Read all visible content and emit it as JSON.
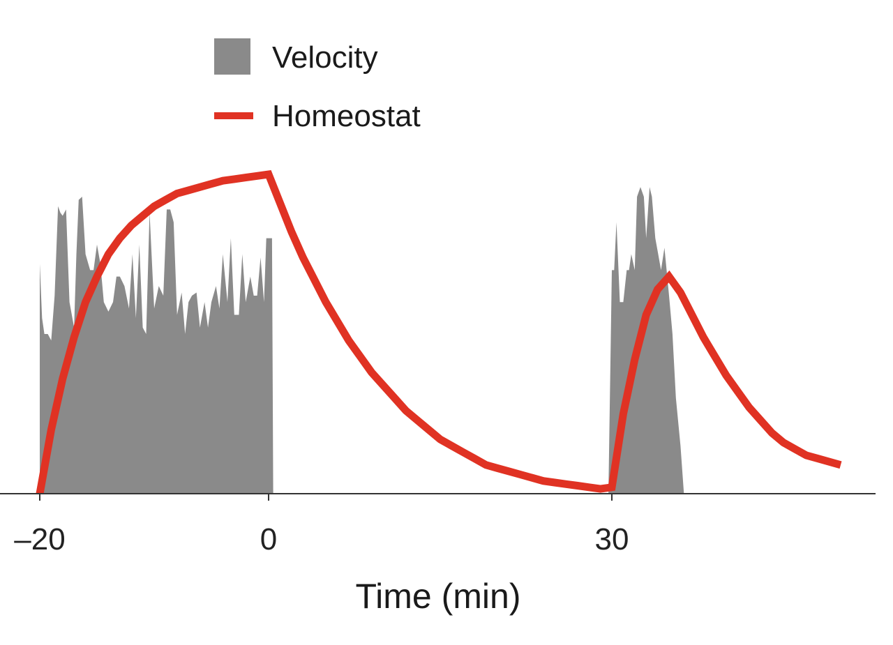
{
  "chart_data": {
    "type": "area",
    "xlabel": "Time (min)",
    "ylabel": "",
    "xlim": [
      -20,
      53
    ],
    "ylim": [
      0,
      1.0
    ],
    "x_ticks": [
      -20,
      0,
      30
    ],
    "x_tick_labels": [
      "–20",
      "0",
      "30"
    ],
    "grid": false,
    "legend": {
      "position": "top-left",
      "entries": [
        {
          "label": "Velocity",
          "symbol": "patch",
          "color": "#8a8a8a"
        },
        {
          "label": "Homeostat",
          "symbol": "line",
          "color": "#e03223"
        }
      ]
    },
    "series": [
      {
        "name": "Velocity",
        "kind": "area",
        "color": "#8a8a8a",
        "segments": [
          {
            "x": [
              -20,
              -19.8,
              -19.6,
              -19.3,
              -19.0,
              -18.7,
              -18.4,
              -18.2,
              -18.0,
              -17.7,
              -17.4,
              -17.0,
              -16.8,
              -16.6,
              -16.3,
              -16.0,
              -15.6,
              -15.3,
              -15.0,
              -14.7,
              -14.4,
              -14.0,
              -13.6,
              -13.3,
              -13.0,
              -12.6,
              -12.2,
              -11.9,
              -11.6,
              -11.3,
              -11.0,
              -10.7,
              -10.4,
              -10.0,
              -9.6,
              -9.2,
              -8.9,
              -8.6,
              -8.3,
              -8.0,
              -7.6,
              -7.3,
              -7.0,
              -6.7,
              -6.3,
              -6.0,
              -5.6,
              -5.3,
              -5.0,
              -4.6,
              -4.3,
              -4.0,
              -3.6,
              -3.3,
              -3.0,
              -2.6,
              -2.3,
              -2.0,
              -1.6,
              -1.3,
              -1.0,
              -0.7,
              -0.4,
              -0.2,
              0,
              0.3,
              0.4
            ],
            "y": [
              0.72,
              0.55,
              0.5,
              0.5,
              0.48,
              0.62,
              0.9,
              0.88,
              0.87,
              0.89,
              0.6,
              0.52,
              0.75,
              0.92,
              0.93,
              0.75,
              0.7,
              0.7,
              0.78,
              0.72,
              0.6,
              0.57,
              0.6,
              0.68,
              0.68,
              0.65,
              0.58,
              0.75,
              0.55,
              0.78,
              0.52,
              0.5,
              0.88,
              0.58,
              0.65,
              0.62,
              0.89,
              0.89,
              0.85,
              0.56,
              0.63,
              0.5,
              0.6,
              0.62,
              0.63,
              0.52,
              0.6,
              0.52,
              0.6,
              0.65,
              0.58,
              0.75,
              0.6,
              0.8,
              0.56,
              0.56,
              0.75,
              0.6,
              0.68,
              0.62,
              0.62,
              0.74,
              0.6,
              0.8,
              0.8,
              0.8,
              0
            ]
          },
          {
            "x": [
              29.7,
              30.0,
              30.2,
              30.4,
              30.7,
              31.0,
              31.3,
              31.5,
              31.7,
              32.0,
              32.2,
              32.5,
              32.8,
              33.0,
              33.3,
              33.5,
              33.8,
              34.0,
              34.3,
              34.6,
              35.0,
              35.3,
              35.6,
              36.0,
              36.3
            ],
            "y": [
              0,
              0.7,
              0.7,
              0.85,
              0.6,
              0.6,
              0.7,
              0.7,
              0.75,
              0.7,
              0.93,
              0.96,
              0.93,
              0.8,
              0.96,
              0.93,
              0.8,
              0.76,
              0.7,
              0.77,
              0.62,
              0.5,
              0.3,
              0.15,
              0
            ]
          }
        ]
      },
      {
        "name": "Homeostat",
        "kind": "line",
        "color": "#e03223",
        "x": [
          -20,
          -19,
          -18,
          -17,
          -16,
          -15,
          -14,
          -13,
          -12,
          -11,
          -10,
          -9,
          -8,
          -7,
          -6,
          -5,
          -4,
          -3,
          -2,
          -1,
          0,
          1,
          2,
          3,
          4,
          5,
          6,
          7,
          8,
          9,
          10,
          11,
          12,
          13,
          14,
          15,
          16,
          17,
          18,
          19,
          20,
          21,
          22,
          23,
          24,
          25,
          26,
          27,
          28,
          29,
          30,
          31,
          32,
          33,
          34,
          35,
          36,
          37,
          38,
          39,
          40,
          41,
          42,
          43,
          44,
          45,
          46,
          47,
          48,
          49,
          50
        ],
        "y": [
          0.0,
          0.2,
          0.36,
          0.49,
          0.6,
          0.68,
          0.75,
          0.8,
          0.84,
          0.87,
          0.9,
          0.92,
          0.94,
          0.95,
          0.96,
          0.97,
          0.98,
          0.985,
          0.99,
          0.995,
          1.0,
          0.91,
          0.82,
          0.74,
          0.67,
          0.6,
          0.54,
          0.48,
          0.43,
          0.38,
          0.34,
          0.3,
          0.26,
          0.23,
          0.2,
          0.17,
          0.15,
          0.13,
          0.11,
          0.09,
          0.08,
          0.07,
          0.06,
          0.05,
          0.04,
          0.035,
          0.03,
          0.025,
          0.02,
          0.015,
          0.02,
          0.25,
          0.42,
          0.56,
          0.64,
          0.68,
          0.63,
          0.56,
          0.49,
          0.43,
          0.37,
          0.32,
          0.27,
          0.23,
          0.19,
          0.16,
          0.14,
          0.12,
          0.11,
          0.1,
          0.09
        ]
      }
    ]
  }
}
